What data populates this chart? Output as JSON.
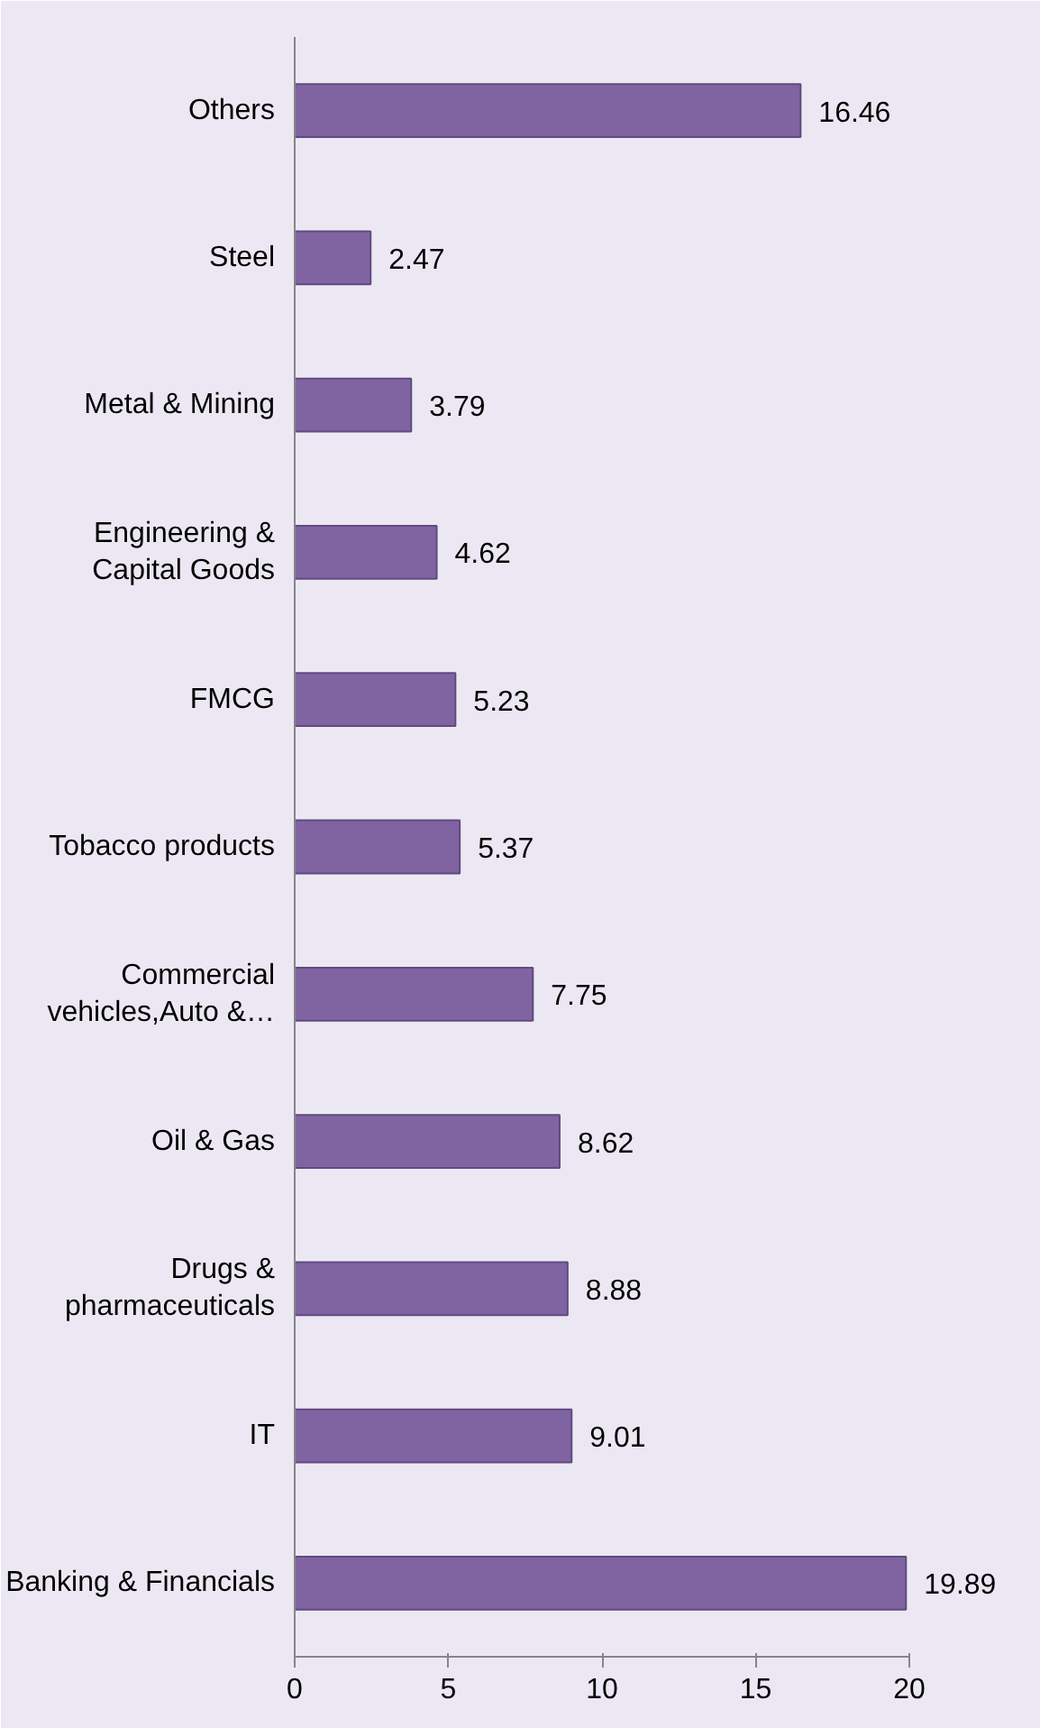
{
  "chart_data": {
    "type": "bar",
    "orientation": "horizontal",
    "categories": [
      "Others",
      "Steel",
      "Metal & Mining",
      "Engineering & Capital Goods",
      "FMCG",
      "Tobacco products",
      "Commercial vehicles,Auto &…",
      "Oil & Gas",
      "Drugs & pharmaceuticals",
      "IT",
      "Banking & Financials"
    ],
    "values": [
      16.46,
      2.47,
      3.79,
      4.62,
      5.23,
      5.37,
      7.75,
      8.62,
      8.88,
      9.01,
      19.89
    ],
    "color": "#8064a2",
    "data_labels": true,
    "grid": false,
    "xlim": [
      0,
      20
    ],
    "xticks": [
      0,
      5,
      10,
      15,
      20
    ]
  }
}
